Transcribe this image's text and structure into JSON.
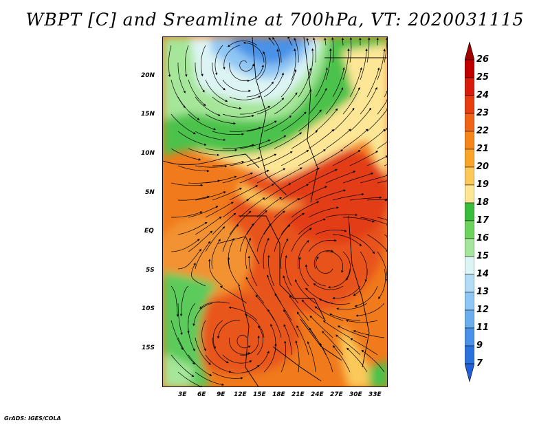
{
  "title": "WBPT [C] and Sreamline at 700hPa, VT: 2020031115",
  "footer": "GrADS: IGES/COLA",
  "map": {
    "lat_labels": [
      "20N",
      "15N",
      "10N",
      "5N",
      "EQ",
      "5S",
      "10S",
      "15S"
    ],
    "lon_labels": [
      "3E",
      "6E",
      "9E",
      "12E",
      "15E",
      "18E",
      "21E",
      "24E",
      "27E",
      "30E",
      "33E"
    ],
    "lat_range": [
      -19,
      25
    ],
    "lon_range": [
      0,
      34
    ]
  },
  "colorbar": {
    "labels": [
      "26",
      "25",
      "24",
      "23",
      "22",
      "21",
      "20",
      "19",
      "18",
      "17",
      "16",
      "15",
      "14",
      "13",
      "12",
      "11",
      "9",
      "7"
    ],
    "colors": [
      "#c00000",
      "#d81c0c",
      "#e83d10",
      "#f06418",
      "#f7851c",
      "#f9a52a",
      "#fbc95a",
      "#fde796",
      "#3cbc3c",
      "#6cd35c",
      "#a6e69a",
      "#ddf4f4",
      "#b2dcf8",
      "#8ec6f4",
      "#6aaeee",
      "#4a92e8",
      "#2c72dc"
    ],
    "top_arrow_color": "#a00000",
    "bottom_arrow_color": "#2060d8"
  }
}
